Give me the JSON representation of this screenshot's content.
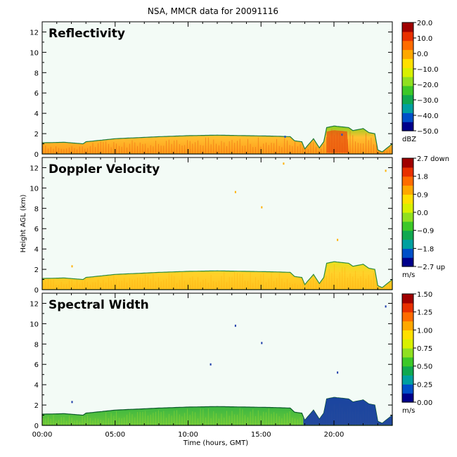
{
  "title": "NSA, MMCR data for 20091116",
  "colors": {
    "panel_bg": "#f3fbf6",
    "frame": "#000000"
  },
  "chart_data": {
    "type": "heatmap",
    "title": "NSA, MMCR data for 20091116",
    "xlabel": "Time (hours, GMT)",
    "ylabel": "Height AGL (km)",
    "xlim": [
      0,
      24
    ],
    "ylim": [
      0,
      13
    ],
    "x_ticks": [
      0,
      5,
      10,
      15,
      20
    ],
    "x_tick_labels": [
      "00:00",
      "05:00",
      "10:00",
      "15:00",
      "20:00"
    ],
    "y_ticks": [
      0,
      2,
      4,
      6,
      8,
      10,
      12
    ],
    "y_tick_labels": [
      "0",
      "2",
      "4",
      "6",
      "8",
      "10",
      "12"
    ],
    "cloud_top_km": {
      "hours": [
        0,
        1.5,
        2.8,
        3.0,
        5,
        8,
        10,
        12,
        14,
        16,
        17,
        17.3,
        17.8,
        18.0,
        18.6,
        19.0,
        19.3,
        19.5,
        20.0,
        21.0,
        21.3,
        22.0,
        22.4,
        22.8,
        23.0,
        23.3,
        24
      ],
      "top": [
        1.1,
        1.15,
        1.0,
        1.2,
        1.5,
        1.7,
        1.8,
        1.85,
        1.8,
        1.75,
        1.7,
        1.3,
        1.2,
        0.5,
        1.5,
        0.6,
        1.2,
        2.6,
        2.75,
        2.6,
        2.3,
        2.5,
        2.1,
        2.0,
        0.4,
        0.2,
        1.0
      ]
    },
    "panels": [
      {
        "name": "Reflectivity",
        "colorbar_ticks": [
          "20.0",
          "10.0",
          "0.0",
          "−10.0",
          "−20.0",
          "−30.0",
          "−40.0",
          "−50.0"
        ],
        "colorbar_unit": "dBZ",
        "colormap": [
          "#00008b",
          "#0050c8",
          "#00a0a0",
          "#10a850",
          "#3cc828",
          "#90e020",
          "#d8f000",
          "#ffe000",
          "#ffa800",
          "#ff6c00",
          "#e83000",
          "#a00000"
        ],
        "fill": {
          "base": "#ff9a1a",
          "mid": "#ffc030",
          "top": "#88d020",
          "edge": "#1e7c3a",
          "streak": "#e8520c"
        },
        "scatter_km": [
          [
            16.6,
            1.8
          ],
          [
            20.5,
            2.0
          ]
        ]
      },
      {
        "name": "Doppler Velocity",
        "colorbar_ticks": [
          "2.7 down",
          "1.8",
          "0.9",
          "0.0",
          "−0.9",
          "−1.8",
          "−2.7 up"
        ],
        "colorbar_unit": "m/s",
        "colormap": [
          "#00008b",
          "#0050c8",
          "#00a0a0",
          "#10a850",
          "#3cc828",
          "#90e020",
          "#d8f000",
          "#ffe000",
          "#ffa800",
          "#ff6c00",
          "#e83000",
          "#a00000"
        ],
        "fill": {
          "base": "#ffc21e",
          "mid": "#ffd22a",
          "top": "#e8e020",
          "edge": "#2e8c3a",
          "streak": "#ffae10"
        },
        "scatter_km": [
          [
            2.0,
            2.4
          ],
          [
            13.2,
            9.7
          ],
          [
            15.0,
            8.2
          ],
          [
            16.5,
            12.5
          ],
          [
            20.2,
            5.0
          ],
          [
            23.5,
            11.8
          ]
        ]
      },
      {
        "name": "Spectral Width",
        "colorbar_ticks": [
          "1.50",
          "1.25",
          "1.00",
          "0.75",
          "0.50",
          "0.25",
          "0.00"
        ],
        "colorbar_unit": "m/s",
        "colormap": [
          "#00008b",
          "#0050c8",
          "#00a0a0",
          "#10a850",
          "#3cc828",
          "#90e020",
          "#d8f000",
          "#ffe000",
          "#ffa800",
          "#ff6c00",
          "#e83000",
          "#a00000"
        ],
        "fill": {
          "base": "#6cc83a",
          "mid": "#40b840",
          "top": "#2aa84a",
          "edge": "#0a5a2a",
          "streak": "#a0dc30",
          "late": "#1a3aa8"
        },
        "scatter_km": [
          [
            2.0,
            2.4
          ],
          [
            13.2,
            9.9
          ],
          [
            15.0,
            8.2
          ],
          [
            11.5,
            6.1
          ],
          [
            20.2,
            5.3
          ],
          [
            23.5,
            11.8
          ]
        ]
      }
    ]
  }
}
